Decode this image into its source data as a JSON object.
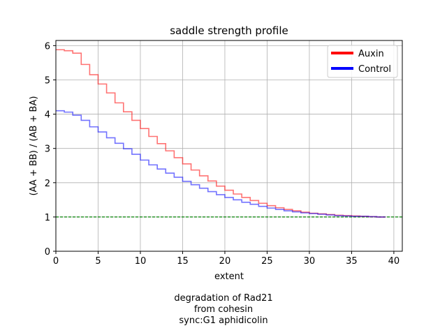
{
  "chart_data": {
    "type": "line",
    "drawstyle": "steps",
    "title": "saddle strength profile",
    "xlabel": "extent",
    "ylabel": "(AA + BB) / (AB + BA)",
    "xlim": [
      0,
      41
    ],
    "ylim": [
      0,
      6.15
    ],
    "xticks": [
      0,
      5,
      10,
      15,
      20,
      25,
      30,
      35,
      40
    ],
    "yticks": [
      0,
      1,
      2,
      3,
      4,
      5,
      6
    ],
    "grid": true,
    "legend_position": "top-right",
    "reference_line": {
      "y": 1,
      "color": "#008000",
      "style": "dashed"
    },
    "x": [
      0,
      1,
      2,
      3,
      4,
      5,
      6,
      7,
      8,
      9,
      10,
      11,
      12,
      13,
      14,
      15,
      16,
      17,
      18,
      19,
      20,
      21,
      22,
      23,
      24,
      25,
      26,
      27,
      28,
      29,
      30,
      31,
      32,
      33,
      34,
      35,
      36,
      37,
      38,
      39
    ],
    "series": [
      {
        "name": "Auxin",
        "color": "#ff0000",
        "values": [
          5.88,
          5.85,
          5.78,
          5.45,
          5.15,
          4.88,
          4.62,
          4.33,
          4.07,
          3.82,
          3.58,
          3.35,
          3.14,
          2.93,
          2.73,
          2.55,
          2.37,
          2.2,
          2.05,
          1.9,
          1.78,
          1.67,
          1.57,
          1.48,
          1.4,
          1.33,
          1.27,
          1.22,
          1.18,
          1.14,
          1.11,
          1.09,
          1.07,
          1.05,
          1.04,
          1.03,
          1.02,
          1.01,
          1.0,
          1.0
        ]
      },
      {
        "name": "Control",
        "color": "#0000ff",
        "values": [
          4.1,
          4.06,
          3.97,
          3.82,
          3.63,
          3.48,
          3.31,
          3.15,
          2.99,
          2.83,
          2.66,
          2.52,
          2.4,
          2.28,
          2.16,
          2.04,
          1.94,
          1.84,
          1.74,
          1.65,
          1.57,
          1.5,
          1.43,
          1.37,
          1.31,
          1.26,
          1.22,
          1.18,
          1.15,
          1.12,
          1.1,
          1.08,
          1.06,
          1.04,
          1.03,
          1.02,
          1.02,
          1.01,
          1.0,
          1.0
        ]
      }
    ]
  },
  "caption": {
    "line1": "degradation of Rad21",
    "line2": "from cohesin",
    "line3": "sync:G1 aphidicolin"
  }
}
